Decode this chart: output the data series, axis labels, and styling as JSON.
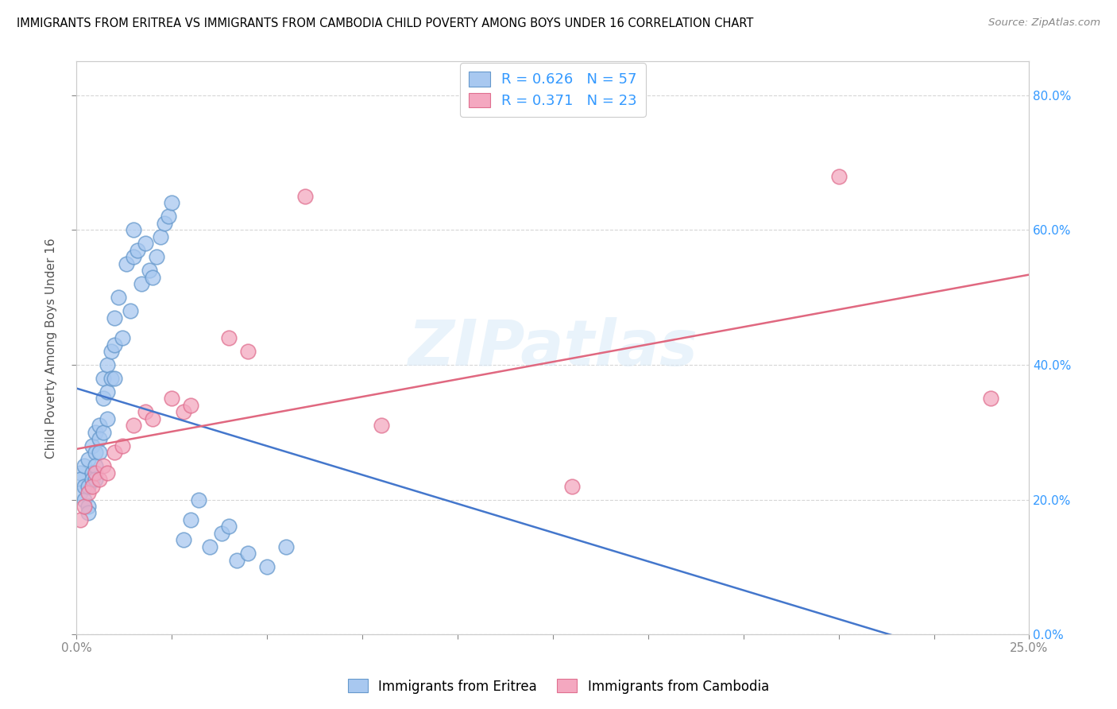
{
  "title": "IMMIGRANTS FROM ERITREA VS IMMIGRANTS FROM CAMBODIA CHILD POVERTY AMONG BOYS UNDER 16 CORRELATION CHART",
  "source": "Source: ZipAtlas.com",
  "ylabel": "Child Poverty Among Boys Under 16",
  "xlim": [
    0.0,
    0.25
  ],
  "ylim": [
    0.0,
    0.85
  ],
  "x_ticks": [
    0.0,
    0.025,
    0.05,
    0.075,
    0.1,
    0.125,
    0.15,
    0.175,
    0.2,
    0.225,
    0.25
  ],
  "y_ticks": [
    0.0,
    0.2,
    0.4,
    0.6,
    0.8
  ],
  "eritrea_color": "#a8c8f0",
  "eritrea_edge": "#6699cc",
  "cambodia_color": "#f4a8c0",
  "cambodia_edge": "#e07090",
  "eritrea_line_color": "#4477cc",
  "cambodia_line_color": "#e06880",
  "R_eritrea": 0.626,
  "N_eritrea": 57,
  "R_cambodia": 0.371,
  "N_cambodia": 23,
  "watermark": "ZIPatlas",
  "eritrea_x": [
    0.001,
    0.001,
    0.001,
    0.002,
    0.002,
    0.002,
    0.003,
    0.003,
    0.003,
    0.003,
    0.004,
    0.004,
    0.004,
    0.005,
    0.005,
    0.005,
    0.005,
    0.006,
    0.006,
    0.006,
    0.007,
    0.007,
    0.007,
    0.008,
    0.008,
    0.008,
    0.009,
    0.009,
    0.01,
    0.01,
    0.01,
    0.011,
    0.012,
    0.013,
    0.014,
    0.015,
    0.015,
    0.016,
    0.017,
    0.018,
    0.019,
    0.02,
    0.021,
    0.022,
    0.023,
    0.024,
    0.025,
    0.028,
    0.03,
    0.032,
    0.035,
    0.038,
    0.04,
    0.042,
    0.045,
    0.05,
    0.055
  ],
  "eritrea_y": [
    0.24,
    0.23,
    0.21,
    0.25,
    0.22,
    0.2,
    0.26,
    0.22,
    0.19,
    0.18,
    0.28,
    0.24,
    0.23,
    0.3,
    0.27,
    0.25,
    0.23,
    0.31,
    0.29,
    0.27,
    0.38,
    0.35,
    0.3,
    0.4,
    0.36,
    0.32,
    0.42,
    0.38,
    0.47,
    0.43,
    0.38,
    0.5,
    0.44,
    0.55,
    0.48,
    0.6,
    0.56,
    0.57,
    0.52,
    0.58,
    0.54,
    0.53,
    0.56,
    0.59,
    0.61,
    0.62,
    0.64,
    0.14,
    0.17,
    0.2,
    0.13,
    0.15,
    0.16,
    0.11,
    0.12,
    0.1,
    0.13
  ],
  "cambodia_x": [
    0.001,
    0.002,
    0.003,
    0.004,
    0.005,
    0.006,
    0.007,
    0.008,
    0.01,
    0.012,
    0.015,
    0.018,
    0.02,
    0.025,
    0.028,
    0.03,
    0.04,
    0.045,
    0.06,
    0.08,
    0.13,
    0.2,
    0.24
  ],
  "cambodia_y": [
    0.17,
    0.19,
    0.21,
    0.22,
    0.24,
    0.23,
    0.25,
    0.24,
    0.27,
    0.28,
    0.31,
    0.33,
    0.32,
    0.35,
    0.33,
    0.34,
    0.44,
    0.42,
    0.65,
    0.31,
    0.22,
    0.68,
    0.35
  ]
}
